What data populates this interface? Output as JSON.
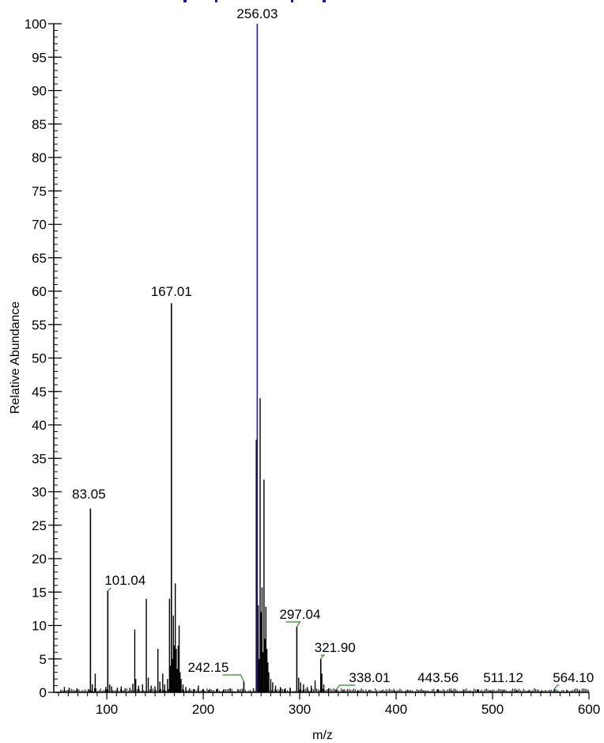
{
  "chart_data": {
    "type": "bar",
    "xlabel": "m/z",
    "ylabel": "Relative Abundance",
    "xlim": [
      45,
      600
    ],
    "ylim": [
      0,
      100
    ],
    "x_ticks": [
      100,
      200,
      300,
      400,
      500,
      600
    ],
    "y_ticks": [
      0,
      5,
      10,
      15,
      20,
      25,
      30,
      35,
      40,
      45,
      50,
      55,
      60,
      65,
      70,
      75,
      80,
      85,
      90,
      95,
      100
    ],
    "colors": {
      "axis": "#000000",
      "peak": "#000000",
      "base_peak": "#1a1a8c",
      "leader_line": "#2e8b2e",
      "partial_title": "#1a1a8c"
    },
    "partial_title_color": "#1a1a8c",
    "base_peak_mz": 256.03,
    "labeled_peaks": [
      {
        "label": "83.05",
        "mz": 83.05,
        "intensity": 27.5
      },
      {
        "label": "101.04",
        "mz": 101.04,
        "intensity": 15.2
      },
      {
        "label": "167.01",
        "mz": 167.01,
        "intensity": 58.2
      },
      {
        "label": "242.15",
        "mz": 242.15,
        "intensity": 1.6
      },
      {
        "label": "256.03",
        "mz": 256.03,
        "intensity": 100.0
      },
      {
        "label": "297.04",
        "mz": 297.04,
        "intensity": 9.8
      },
      {
        "label": "321.90",
        "mz": 321.9,
        "intensity": 5.0
      },
      {
        "label": "338.01",
        "mz": 338.01,
        "intensity": 0.4
      },
      {
        "label": "443.56",
        "mz": 443.56,
        "intensity": 0.5
      },
      {
        "label": "511.12",
        "mz": 511.12,
        "intensity": 0.4
      },
      {
        "label": "564.10",
        "mz": 564.1,
        "intensity": 0.5
      }
    ],
    "peaks": [
      {
        "mz": 56.0,
        "intensity": 0.8
      },
      {
        "mz": 61.0,
        "intensity": 0.7
      },
      {
        "mz": 69.0,
        "intensity": 0.6
      },
      {
        "mz": 81.0,
        "intensity": 0.5
      },
      {
        "mz": 85.0,
        "intensity": 1.2
      },
      {
        "mz": 88.0,
        "intensity": 2.8
      },
      {
        "mz": 99.0,
        "intensity": 0.8
      },
      {
        "mz": 103.0,
        "intensity": 1.2
      },
      {
        "mz": 105.0,
        "intensity": 0.9
      },
      {
        "mz": 111.0,
        "intensity": 0.7
      },
      {
        "mz": 115.0,
        "intensity": 0.9
      },
      {
        "mz": 119.0,
        "intensity": 0.6
      },
      {
        "mz": 124.0,
        "intensity": 0.7
      },
      {
        "mz": 127.0,
        "intensity": 1.3
      },
      {
        "mz": 129.0,
        "intensity": 9.4
      },
      {
        "mz": 130.0,
        "intensity": 2.0
      },
      {
        "mz": 133.0,
        "intensity": 1.0
      },
      {
        "mz": 137.0,
        "intensity": 1.2
      },
      {
        "mz": 141.0,
        "intensity": 14.0
      },
      {
        "mz": 143.0,
        "intensity": 2.2
      },
      {
        "mz": 146.0,
        "intensity": 1.0
      },
      {
        "mz": 150.0,
        "intensity": 0.9
      },
      {
        "mz": 153.0,
        "intensity": 6.5
      },
      {
        "mz": 155.0,
        "intensity": 1.6
      },
      {
        "mz": 158.0,
        "intensity": 2.8
      },
      {
        "mz": 160.0,
        "intensity": 1.2
      },
      {
        "mz": 163.0,
        "intensity": 2.0
      },
      {
        "mz": 165.0,
        "intensity": 14.0
      },
      {
        "mz": 166.0,
        "intensity": 4.0
      },
      {
        "mz": 168.0,
        "intensity": 5.0
      },
      {
        "mz": 169.0,
        "intensity": 11.5
      },
      {
        "mz": 170.0,
        "intensity": 7.0
      },
      {
        "mz": 171.0,
        "intensity": 16.3
      },
      {
        "mz": 172.0,
        "intensity": 6.5
      },
      {
        "mz": 173.0,
        "intensity": 3.5
      },
      {
        "mz": 174.0,
        "intensity": 7.0
      },
      {
        "mz": 175.0,
        "intensity": 10.0
      },
      {
        "mz": 176.0,
        "intensity": 3.0
      },
      {
        "mz": 177.0,
        "intensity": 2.0
      },
      {
        "mz": 179.0,
        "intensity": 1.2
      },
      {
        "mz": 182.0,
        "intensity": 0.8
      },
      {
        "mz": 186.0,
        "intensity": 0.6
      },
      {
        "mz": 190.0,
        "intensity": 0.5
      },
      {
        "mz": 195.0,
        "intensity": 1.0
      },
      {
        "mz": 200.0,
        "intensity": 0.5
      },
      {
        "mz": 206.0,
        "intensity": 0.4
      },
      {
        "mz": 214.0,
        "intensity": 0.5
      },
      {
        "mz": 221.0,
        "intensity": 0.4
      },
      {
        "mz": 228.0,
        "intensity": 0.6
      },
      {
        "mz": 236.0,
        "intensity": 0.5
      },
      {
        "mz": 252.0,
        "intensity": 0.6
      },
      {
        "mz": 255.0,
        "intensity": 37.8
      },
      {
        "mz": 257.0,
        "intensity": 13.0
      },
      {
        "mz": 258.0,
        "intensity": 5.0
      },
      {
        "mz": 259.0,
        "intensity": 44.0
      },
      {
        "mz": 260.0,
        "intensity": 12.0
      },
      {
        "mz": 261.0,
        "intensity": 15.7
      },
      {
        "mz": 262.0,
        "intensity": 6.0
      },
      {
        "mz": 263.0,
        "intensity": 31.8
      },
      {
        "mz": 264.0,
        "intensity": 8.0
      },
      {
        "mz": 265.0,
        "intensity": 12.8
      },
      {
        "mz": 266.0,
        "intensity": 6.5
      },
      {
        "mz": 267.0,
        "intensity": 4.5
      },
      {
        "mz": 268.0,
        "intensity": 3.0
      },
      {
        "mz": 270.0,
        "intensity": 2.0
      },
      {
        "mz": 272.0,
        "intensity": 1.5
      },
      {
        "mz": 275.0,
        "intensity": 1.0
      },
      {
        "mz": 280.0,
        "intensity": 0.8
      },
      {
        "mz": 285.0,
        "intensity": 0.6
      },
      {
        "mz": 290.0,
        "intensity": 0.7
      },
      {
        "mz": 299.0,
        "intensity": 2.2
      },
      {
        "mz": 301.0,
        "intensity": 1.5
      },
      {
        "mz": 304.0,
        "intensity": 1.2
      },
      {
        "mz": 308.0,
        "intensity": 0.8
      },
      {
        "mz": 312.0,
        "intensity": 1.0
      },
      {
        "mz": 316.0,
        "intensity": 1.8
      },
      {
        "mz": 323.0,
        "intensity": 2.8
      },
      {
        "mz": 325.0,
        "intensity": 1.2
      },
      {
        "mz": 330.0,
        "intensity": 0.6
      },
      {
        "mz": 345.0,
        "intensity": 0.4
      },
      {
        "mz": 360.0,
        "intensity": 0.3
      },
      {
        "mz": 372.0,
        "intensity": 0.4
      },
      {
        "mz": 385.0,
        "intensity": 0.3
      },
      {
        "mz": 398.0,
        "intensity": 0.3
      },
      {
        "mz": 412.0,
        "intensity": 0.4
      },
      {
        "mz": 428.0,
        "intensity": 0.3
      },
      {
        "mz": 457.0,
        "intensity": 0.3
      },
      {
        "mz": 470.0,
        "intensity": 0.3
      },
      {
        "mz": 485.0,
        "intensity": 0.4
      },
      {
        "mz": 498.0,
        "intensity": 0.3
      },
      {
        "mz": 525.0,
        "intensity": 0.3
      },
      {
        "mz": 538.0,
        "intensity": 0.4
      },
      {
        "mz": 551.0,
        "intensity": 0.3
      },
      {
        "mz": 578.0,
        "intensity": 0.3
      },
      {
        "mz": 590.0,
        "intensity": 0.4
      }
    ]
  }
}
